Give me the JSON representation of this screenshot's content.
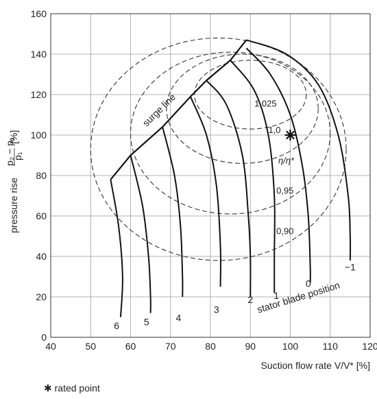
{
  "chart_data": {
    "type": "line",
    "title": "",
    "xlabel": "Suction flow rate V/V* [%]",
    "ylabel_prefix": "pressure rise",
    "ylabel_num": "p₂ − p₁",
    "ylabel_den": "p₁",
    "ylabel_unit": "[%]",
    "xlim": [
      40,
      120
    ],
    "ylim": [
      0,
      160
    ],
    "xticks": [
      40,
      50,
      60,
      70,
      80,
      90,
      100,
      110,
      120
    ],
    "yticks": [
      0,
      20,
      40,
      60,
      80,
      100,
      120,
      140,
      160
    ],
    "grid": true,
    "surge_line_label": "surge line",
    "surge_line": [
      [
        55,
        78
      ],
      [
        60,
        90
      ],
      [
        68,
        104
      ],
      [
        75,
        119
      ],
      [
        79,
        127
      ],
      [
        85,
        137
      ],
      [
        89,
        147
      ]
    ],
    "stator_axis_label": "stator blade position",
    "series": [
      {
        "name": "6",
        "points": [
          [
            55,
            78
          ],
          [
            57,
            55
          ],
          [
            58,
            30
          ],
          [
            57.5,
            10
          ]
        ],
        "label_at": [
          56.5,
          4
        ]
      },
      {
        "name": "5",
        "points": [
          [
            60,
            90
          ],
          [
            63,
            65
          ],
          [
            64.5,
            40
          ],
          [
            65,
            20
          ],
          [
            65,
            12
          ]
        ],
        "label_at": [
          64,
          6
        ]
      },
      {
        "name": "4",
        "points": [
          [
            68,
            104
          ],
          [
            71,
            80
          ],
          [
            72.5,
            55
          ],
          [
            73,
            30
          ],
          [
            73,
            20
          ]
        ],
        "label_at": [
          72,
          8
        ]
      },
      {
        "name": "3",
        "points": [
          [
            75,
            119
          ],
          [
            79,
            100
          ],
          [
            81.5,
            75
          ],
          [
            82.5,
            45
          ],
          [
            82.5,
            25
          ]
        ],
        "label_at": [
          81.5,
          12
        ]
      },
      {
        "name": "2",
        "points": [
          [
            79,
            127
          ],
          [
            84,
            115
          ],
          [
            88,
            90
          ],
          [
            89.5,
            60
          ],
          [
            90,
            40
          ],
          [
            90,
            20
          ]
        ],
        "label_at": [
          90,
          17
        ]
      },
      {
        "name": "1",
        "points": [
          [
            85,
            137
          ],
          [
            91,
            122
          ],
          [
            94.5,
            100
          ],
          [
            96,
            70
          ],
          [
            96,
            40
          ],
          [
            96,
            22
          ]
        ],
        "label_at": [
          96.5,
          19
        ]
      },
      {
        "name": "0",
        "points": [
          [
            89,
            143
          ],
          [
            95,
            130
          ],
          [
            100,
            110
          ],
          [
            103,
            85
          ],
          [
            104.5,
            60
          ],
          [
            105,
            35
          ],
          [
            105,
            27
          ]
        ],
        "label_at": [
          104.5,
          25
        ]
      },
      {
        "name": "−1",
        "points": [
          [
            89,
            147
          ],
          [
            99,
            140
          ],
          [
            107,
            125
          ],
          [
            112,
            100
          ],
          [
            114.5,
            70
          ],
          [
            115,
            50
          ],
          [
            115,
            38
          ]
        ],
        "label_at": [
          115,
          33
        ]
      }
    ],
    "efficiency_contours": [
      {
        "label": "1,025",
        "cx": 90,
        "cy": 120,
        "rx": 14,
        "ry": 17,
        "label_at": [
          91,
          114
        ]
      },
      {
        "label": "1,0",
        "cx": 88,
        "cy": 113,
        "rx": 19,
        "ry": 27,
        "label_at": [
          94.5,
          101
        ]
      },
      {
        "label": "0,95",
        "cx": 85,
        "cy": 101,
        "rx": 25,
        "ry": 40,
        "label_at": [
          96.5,
          71
        ]
      },
      {
        "label": "0,90",
        "cx": 82,
        "cy": 93,
        "rx": 32,
        "ry": 55,
        "label_at": [
          96.5,
          51
        ]
      }
    ],
    "eta_label": "η/η*",
    "eta_label_at": [
      97,
      86
    ],
    "rated_point": [
      100,
      100
    ],
    "footnote": "✱ rated point"
  }
}
